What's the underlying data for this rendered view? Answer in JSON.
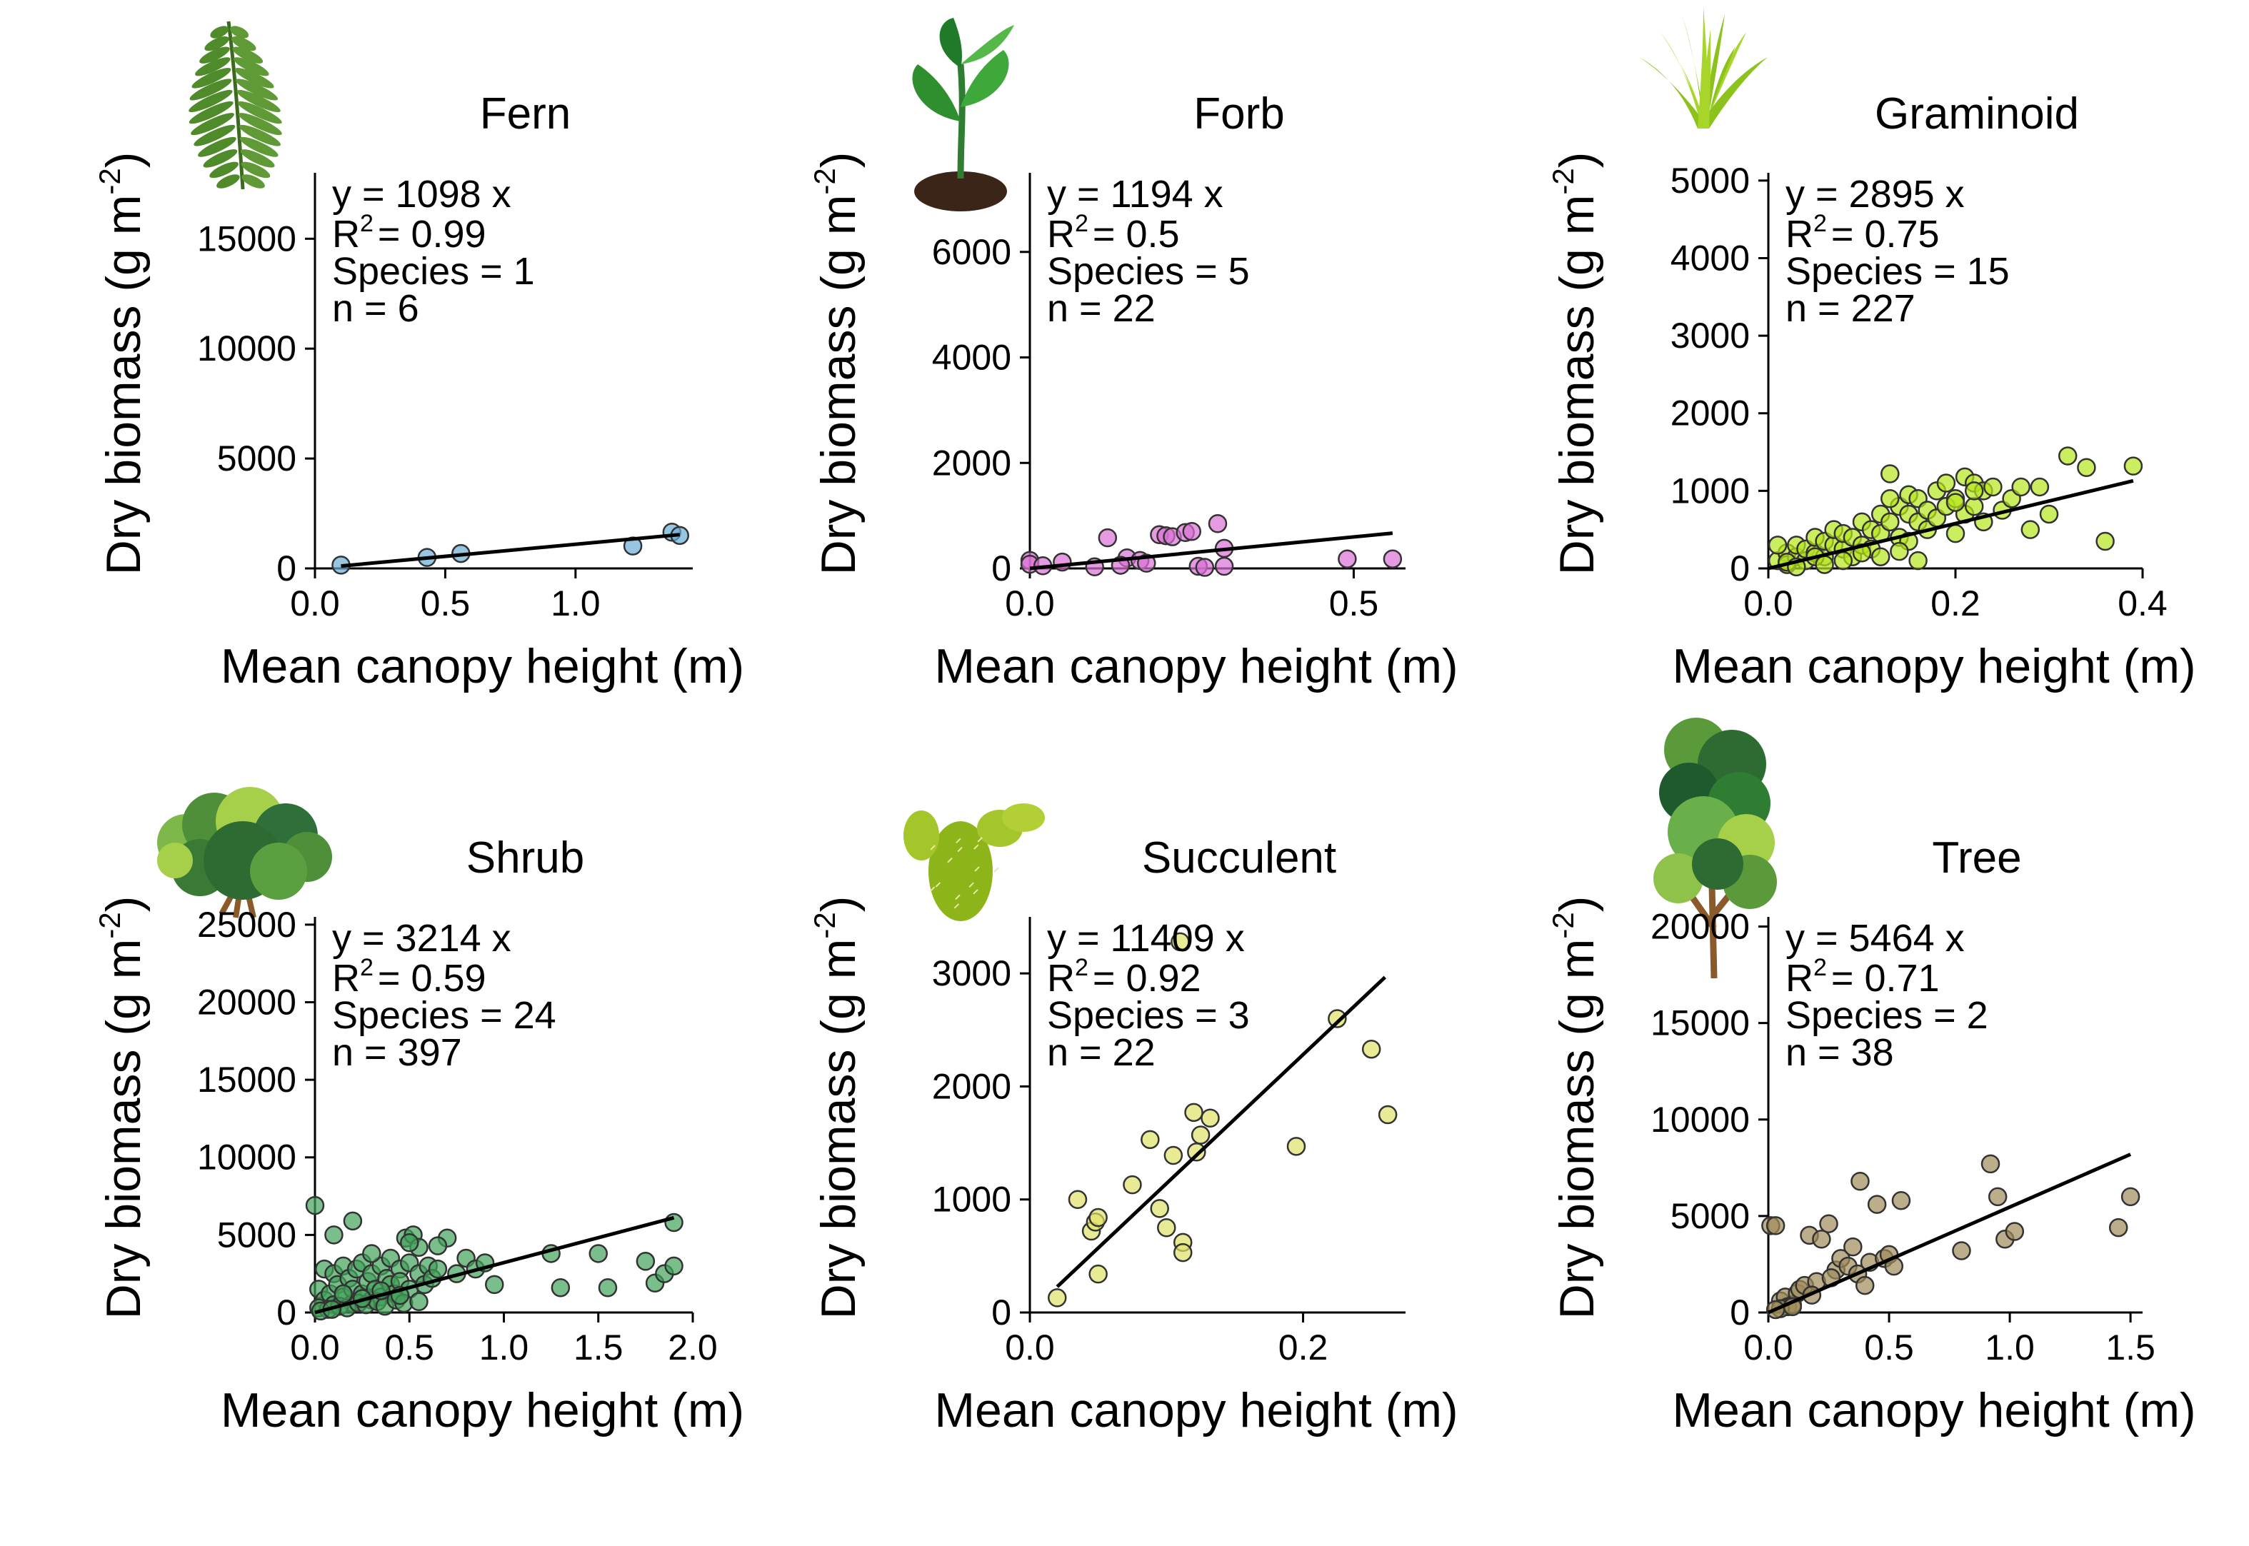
{
  "chart_data": [
    {
      "type": "scatter",
      "title": "Fern",
      "icon": "fern-icon",
      "xlabel": "Mean canopy height (m)",
      "ylabel": "Dry biomass (g m-2)",
      "xlim": [
        0,
        1.45
      ],
      "ylim": [
        0,
        18000
      ],
      "xticks": [
        0,
        0.5,
        1
      ],
      "xtick_labels": [
        "0.0",
        "0.5",
        "1.0"
      ],
      "yticks": [
        0,
        5000,
        10000,
        15000
      ],
      "ytick_labels": [
        "0",
        "5000",
        "10000",
        "15000"
      ],
      "point_color": "#6baed6",
      "slope": 1098,
      "fit_x": [
        0.1,
        1.4
      ],
      "equation": "y = 1098 x",
      "r2_value": "= 0.99",
      "species_text": "Species = 1",
      "n_text": "n = 6",
      "x": [
        0.1,
        0.43,
        0.56,
        1.22,
        1.37,
        1.4
      ],
      "y": [
        150,
        500,
        680,
        1020,
        1650,
        1500
      ]
    },
    {
      "type": "scatter",
      "title": "Forb",
      "icon": "seedling-icon",
      "xlabel": "Mean canopy height (m)",
      "ylabel": "Dry biomass (g m-2)",
      "xlim": [
        0,
        0.58
      ],
      "ylim": [
        0,
        7500
      ],
      "xticks": [
        0,
        0.5
      ],
      "xtick_labels": [
        "0.0",
        "0.5"
      ],
      "yticks": [
        0,
        2000,
        4000,
        6000
      ],
      "ytick_labels": [
        "0",
        "2000",
        "4000",
        "6000"
      ],
      "point_color": "#da70d6",
      "slope": 1194,
      "fit_x": [
        0,
        0.56
      ],
      "equation": "y = 1194 x",
      "r2_value": "= 0.5",
      "species_text": "Species = 5",
      "n_text": "n = 22",
      "x": [
        0.0,
        0.0,
        0.05,
        0.12,
        0.15,
        0.17,
        0.2,
        0.21,
        0.22,
        0.24,
        0.25,
        0.29,
        0.3,
        0.3,
        0.49,
        0.56,
        0.02,
        0.18,
        0.26,
        0.1,
        0.14,
        0.27
      ],
      "y": [
        150,
        80,
        120,
        580,
        200,
        150,
        640,
        620,
        600,
        680,
        700,
        850,
        380,
        40,
        180,
        180,
        50,
        100,
        40,
        30,
        60,
        20
      ]
    },
    {
      "type": "scatter",
      "title": "Graminoid",
      "icon": "grass-icon",
      "xlabel": "Mean canopy height (m)",
      "ylabel": "Dry biomass (g m-2)",
      "xlim": [
        0,
        0.4
      ],
      "ylim": [
        0,
        5100
      ],
      "xticks": [
        0,
        0.2,
        0.4
      ],
      "xtick_labels": [
        "0.0",
        "0.2",
        "0.4"
      ],
      "yticks": [
        0,
        1000,
        2000,
        3000,
        4000,
        5000
      ],
      "ytick_labels": [
        "0",
        "1000",
        "2000",
        "3000",
        "4000",
        "5000"
      ],
      "point_color": "#b5e61d",
      "slope": 2895,
      "fit_x": [
        0,
        0.39
      ],
      "equation": "y = 2895 x",
      "r2_value": "= 0.75",
      "species_text": "Species = 15",
      "n_text": "n = 227",
      "x": [
        0.01,
        0.02,
        0.02,
        0.03,
        0.03,
        0.04,
        0.04,
        0.05,
        0.05,
        0.06,
        0.06,
        0.07,
        0.07,
        0.08,
        0.08,
        0.09,
        0.09,
        0.1,
        0.1,
        0.11,
        0.11,
        0.12,
        0.12,
        0.13,
        0.13,
        0.14,
        0.14,
        0.15,
        0.15,
        0.16,
        0.16,
        0.17,
        0.17,
        0.18,
        0.18,
        0.19,
        0.19,
        0.2,
        0.2,
        0.21,
        0.21,
        0.22,
        0.22,
        0.23,
        0.23,
        0.24,
        0.25,
        0.26,
        0.27,
        0.28,
        0.3,
        0.32,
        0.34,
        0.36,
        0.39,
        0.13,
        0.15,
        0.2,
        0.22,
        0.29,
        0.01,
        0.02,
        0.03,
        0.05,
        0.06,
        0.08,
        0.1,
        0.12,
        0.14,
        0.16
      ],
      "y": [
        100,
        200,
        50,
        150,
        300,
        100,
        250,
        200,
        400,
        150,
        350,
        300,
        500,
        250,
        450,
        400,
        150,
        300,
        600,
        500,
        250,
        450,
        700,
        600,
        1220,
        800,
        400,
        700,
        950,
        600,
        900,
        750,
        500,
        1000,
        650,
        800,
        1100,
        900,
        450,
        700,
        1180,
        1100,
        800,
        1000,
        600,
        1050,
        750,
        900,
        1050,
        500,
        700,
        1450,
        1300,
        350,
        1320,
        900,
        350,
        850,
        1000,
        1050,
        300,
        80,
        20,
        150,
        50,
        100,
        200,
        150,
        220,
        100
      ]
    },
    {
      "type": "scatter",
      "title": "Shrub",
      "icon": "shrub-icon",
      "xlabel": "Mean canopy height (m)",
      "ylabel": "Dry biomass (g m-2)",
      "xlim": [
        0,
        2.0
      ],
      "ylim": [
        0,
        25500
      ],
      "xticks": [
        0,
        0.5,
        1,
        1.5,
        2
      ],
      "xtick_labels": [
        "0.0",
        "0.5",
        "1.0",
        "1.5",
        "2.0"
      ],
      "yticks": [
        0,
        5000,
        10000,
        15000,
        20000,
        25000
      ],
      "ytick_labels": [
        "0",
        "5000",
        "10000",
        "15000",
        "20000",
        "25000"
      ],
      "point_color": "#41a35a",
      "slope": 3214,
      "fit_x": [
        0,
        1.9
      ],
      "equation": "y = 3214 x",
      "r2_value": "= 0.59",
      "species_text": "Species = 24",
      "n_text": "n = 397",
      "x": [
        0.02,
        0.05,
        0.05,
        0.08,
        0.1,
        0.1,
        0.12,
        0.15,
        0.15,
        0.18,
        0.2,
        0.2,
        0.22,
        0.25,
        0.25,
        0.28,
        0.3,
        0.3,
        0.32,
        0.35,
        0.35,
        0.38,
        0.4,
        0.4,
        0.42,
        0.45,
        0.45,
        0.48,
        0.5,
        0.5,
        0.52,
        0.55,
        0.55,
        0.58,
        0.6,
        0.62,
        0.65,
        0.7,
        0.75,
        0.8,
        0.85,
        0.9,
        0.95,
        1.25,
        1.3,
        1.5,
        1.55,
        1.75,
        1.8,
        1.85,
        1.9,
        1.9,
        0.0,
        0.1,
        0.2,
        0.3,
        0.5,
        0.65,
        0.02,
        0.07,
        0.13,
        0.17,
        0.23,
        0.27,
        0.33,
        0.37,
        0.43,
        0.47,
        0.03,
        0.09,
        0.15,
        0.25,
        0.35,
        0.45,
        0.55
      ],
      "y": [
        1500,
        800,
        2800,
        1200,
        500,
        2500,
        1800,
        1000,
        3000,
        2200,
        600,
        1500,
        2800,
        1200,
        3200,
        2000,
        800,
        2500,
        1500,
        3000,
        1000,
        2200,
        1800,
        3500,
        1200,
        2800,
        2000,
        4800,
        1500,
        3200,
        5000,
        2500,
        4200,
        1800,
        3000,
        2200,
        2800,
        4800,
        2500,
        3500,
        2800,
        3200,
        1800,
        3800,
        1600,
        3800,
        1600,
        3300,
        1900,
        2500,
        5800,
        3000,
        6900,
        5000,
        5900,
        3800,
        4500,
        4300,
        300,
        200,
        400,
        300,
        600,
        500,
        700,
        400,
        800,
        600,
        100,
        200,
        1200,
        900,
        1400,
        1100,
        700
      ]
    },
    {
      "type": "scatter",
      "title": "Succulent",
      "icon": "cactus-icon",
      "xlabel": "Mean canopy height (m)",
      "ylabel": "Dry biomass (g m-2)",
      "xlim": [
        0,
        0.275
      ],
      "ylim": [
        0,
        3500
      ],
      "xticks": [
        0,
        0.2
      ],
      "xtick_labels": [
        "0.0",
        "0.2"
      ],
      "yticks": [
        0,
        1000,
        2000,
        3000
      ],
      "ytick_labels": [
        "0",
        "1000",
        "2000",
        "3000"
      ],
      "point_color": "#e0e366",
      "slope": 11409,
      "fit_x": [
        0.02,
        0.26
      ],
      "equation": "y = 11409 x",
      "r2_value": "= 0.92",
      "species_text": "Species = 3",
      "n_text": "n = 22",
      "x": [
        0.02,
        0.035,
        0.045,
        0.048,
        0.05,
        0.05,
        0.075,
        0.088,
        0.095,
        0.1,
        0.105,
        0.112,
        0.112,
        0.12,
        0.122,
        0.125,
        0.132,
        0.195,
        0.225,
        0.25,
        0.262,
        0.11
      ],
      "y": [
        130,
        1000,
        720,
        800,
        840,
        340,
        1130,
        1530,
        920,
        750,
        1390,
        620,
        530,
        1770,
        1420,
        1570,
        1720,
        1470,
        2600,
        2330,
        1750,
        3280
      ]
    },
    {
      "type": "scatter",
      "title": "Tree",
      "icon": "tree-icon",
      "xlabel": "Mean canopy height (m)",
      "ylabel": "Dry biomass (g m-2)",
      "xlim": [
        0,
        1.55
      ],
      "ylim": [
        0,
        20500
      ],
      "xticks": [
        0,
        0.5,
        1,
        1.5
      ],
      "xtick_labels": [
        "0.0",
        "0.5",
        "1.0",
        "1.5"
      ],
      "yticks": [
        0,
        5000,
        10000,
        15000,
        20000
      ],
      "ytick_labels": [
        "0",
        "5000",
        "10000",
        "15000",
        "20000"
      ],
      "point_color": "#a08c5a",
      "slope": 5464,
      "fit_x": [
        0,
        1.5
      ],
      "equation": "y = 5464 x",
      "r2_value": "= 0.71",
      "species_text": "Species = 2",
      "n_text": "n = 38",
      "x": [
        0.01,
        0.03,
        0.05,
        0.07,
        0.08,
        0.1,
        0.12,
        0.13,
        0.15,
        0.17,
        0.2,
        0.22,
        0.25,
        0.28,
        0.3,
        0.33,
        0.35,
        0.37,
        0.38,
        0.4,
        0.42,
        0.45,
        0.48,
        0.5,
        0.52,
        0.55,
        0.8,
        0.92,
        0.95,
        0.98,
        1.02,
        1.45,
        1.5,
        0.05,
        0.1,
        0.18,
        0.03,
        0.26
      ],
      "y": [
        4500,
        4500,
        600,
        800,
        300,
        400,
        1000,
        1200,
        1400,
        4000,
        1600,
        3800,
        4600,
        2200,
        2800,
        2400,
        3400,
        2000,
        6800,
        1400,
        2600,
        5600,
        2800,
        3000,
        2400,
        5800,
        3200,
        7700,
        6000,
        3800,
        4200,
        4400,
        6000,
        200,
        300,
        900,
        150,
        1800
      ]
    }
  ]
}
